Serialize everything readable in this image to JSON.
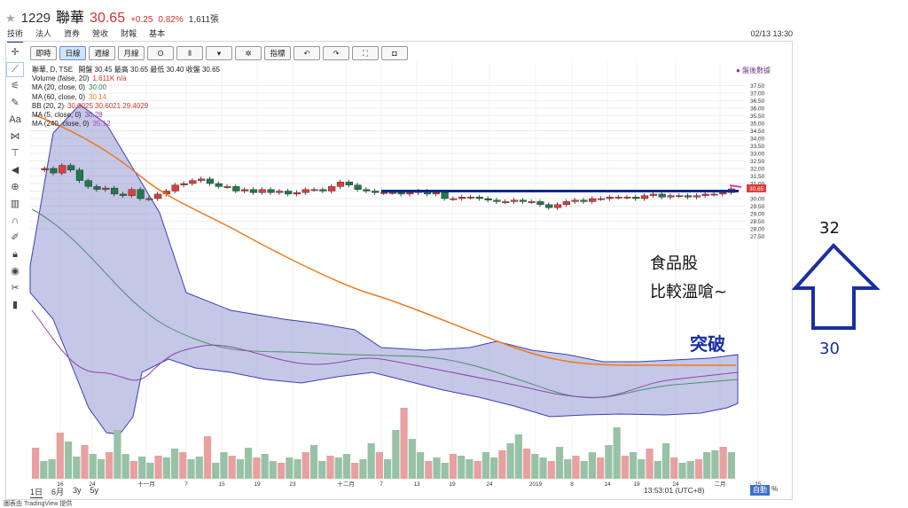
{
  "header": {
    "star": "★",
    "code": "1229",
    "name": "聯華",
    "price": "30.65",
    "change": "+0.25",
    "change_pct": "0.82%",
    "volume": "1,611張"
  },
  "tabs": [
    "技術",
    "法人",
    "資券",
    "營收",
    "財報",
    "基本"
  ],
  "datetime": "02/13 13:30",
  "toolbar": {
    "interval_minute": "即時",
    "interval_day": "日線",
    "interval_week": "週線",
    "interval_month": "月線",
    "indicators": "指標"
  },
  "legend": {
    "main": "聯華, D, TSE",
    "ohlc": "開盤 30.45 最高 30.65 最低 30.40 收盤 30.65",
    "volume_label": "Volume (false, 20)",
    "volume_value": "1.611K n/a",
    "ma20_label": "MA (20, close, 0)",
    "ma20_value": "30.00",
    "ma60_label": "MA (60, close, 0)",
    "ma60_value": "30.14",
    "bb_label": "BB (20, 2)",
    "bb_values": "30.0025 30.6021 29.4029",
    "ma5_label": "MA (5, close, 0)",
    "ma5_value": "30.28",
    "ma240_label": "MA (240, close, 0)",
    "ma240_value": "35.12"
  },
  "after_hours": "● 盤後數據",
  "price_scale": [
    "36.00",
    "37.50",
    "37.00",
    "36.50",
    "36.00",
    "35.50",
    "35.00",
    "34.50",
    "34.00",
    "33.50",
    "33.00",
    "32.50",
    "32.00",
    "31.50",
    "31.00",
    "30.65",
    "30.00",
    "29.50",
    "29.00",
    "28.50",
    "28.00",
    "27.50"
  ],
  "time_labels": [
    "16",
    "24",
    "十一月",
    "7",
    "15",
    "19",
    "23",
    "十二月",
    "7",
    "13",
    "19",
    "24",
    "2019",
    "8",
    "14",
    "19",
    "24",
    "二月",
    "15"
  ],
  "bottom": {
    "ranges": [
      "1日",
      "6月",
      "3y",
      "5y"
    ],
    "clock": "13:53:01 (UTC+8)",
    "mode": "自動",
    "pct": "%"
  },
  "annotations": {
    "title1": "食品股",
    "title2": "比較溫嗆~",
    "breakout": "突破",
    "arrow_top": "32",
    "arrow_bottom": "30"
  },
  "credit": "圖表由 TradingView 提供",
  "colors": {
    "up": "#e23b3b",
    "down": "#1e7a4a",
    "bb_fill": "#8c8fd0",
    "ma60": "#ee7a1e",
    "ma20": "#4b8f6a",
    "ma5": "#8e44ad",
    "volume_up": "#e8a0a0",
    "volume_down": "#98c2a6",
    "annot_blue": "#0a2a8a"
  },
  "chart_data": {
    "type": "candlestick",
    "y_range": [
      27.5,
      38
    ],
    "last_close": 30.65,
    "breakout_level": 30.5
  }
}
